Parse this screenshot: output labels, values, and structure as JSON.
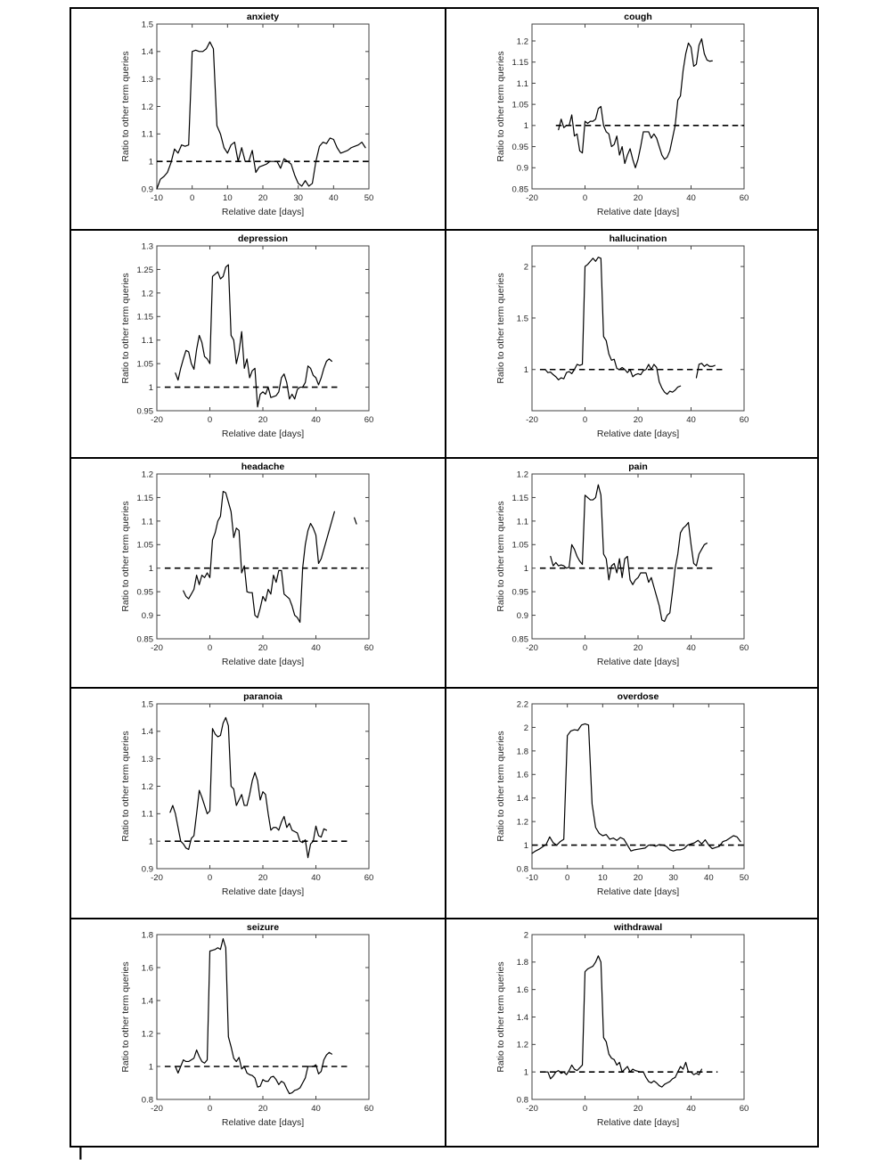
{
  "colors": {
    "background": "#ffffff",
    "line": "#000000",
    "axis": "#404040",
    "tick_text": "#262626",
    "grid_border": "#000000"
  },
  "figure": {
    "caption_mark": "|"
  },
  "chart_data": [
    {
      "type": "line",
      "title": "anxiety",
      "xlabel": "Relative date [days]",
      "ylabel": "Ratio to other term queries",
      "xlim": [
        -10,
        50
      ],
      "ylim": [
        0.9,
        1.5
      ],
      "xticks": [
        -10,
        0,
        10,
        20,
        30,
        40,
        50
      ],
      "yticks": [
        0.9,
        1,
        1.1,
        1.2,
        1.3,
        1.4,
        1.5
      ],
      "grid": false,
      "legend": null,
      "baseline": {
        "y": 1,
        "style": "dashed",
        "x_start": -10,
        "x_end": 50
      },
      "series": [
        {
          "name": "ratio",
          "x_start": -10,
          "x_step": 1,
          "y": [
            0.9,
            0.935,
            0.945,
            0.96,
            0.995,
            1.045,
            1.03,
            1.06,
            1.055,
            1.06,
            1.4,
            1.405,
            1.4,
            1.4,
            1.41,
            1.435,
            1.41,
            1.13,
            1.1,
            1.05,
            1.03,
            1.06,
            1.07,
            1.0,
            1.05,
            1.0,
            1.0,
            1.04,
            0.96,
            0.98,
            0.985,
            0.99,
            1.0,
            1.0,
            1.0,
            0.975,
            1.01,
            1.0,
            0.99,
            0.95,
            0.92,
            0.91,
            0.93,
            0.91,
            0.92,
            1.0,
            1.055,
            1.07,
            1.065,
            1.085,
            1.08,
            1.05,
            1.03,
            1.035,
            1.04,
            1.05,
            1.055,
            1.06,
            1.07,
            1.05
          ]
        }
      ]
    },
    {
      "type": "line",
      "title": "cough",
      "xlabel": "Relative date [days]",
      "ylabel": "Ratio to other term queries",
      "xlim": [
        -20,
        60
      ],
      "ylim": [
        0.85,
        1.24
      ],
      "xticks": [
        -20,
        0,
        20,
        40,
        60
      ],
      "yticks": [
        0.85,
        0.9,
        0.95,
        1,
        1.05,
        1.1,
        1.15,
        1.2
      ],
      "grid": false,
      "legend": null,
      "baseline": {
        "y": 1,
        "style": "dashed",
        "x_start": -11,
        "x_end": 60
      },
      "series": [
        {
          "name": "ratio",
          "x_start": -10,
          "x_step": 1,
          "y": [
            0.99,
            1.015,
            0.995,
            1.0,
            1.0,
            1.025,
            0.975,
            0.98,
            0.94,
            0.935,
            1.01,
            1.005,
            1.01,
            1.01,
            1.015,
            1.04,
            1.045,
            1.0,
            0.985,
            0.98,
            0.95,
            0.955,
            0.975,
            0.93,
            0.95,
            0.91,
            0.93,
            0.945,
            0.92,
            0.9,
            0.92,
            0.95,
            0.985,
            0.985,
            0.985,
            0.97,
            0.98,
            0.97,
            0.95,
            0.93,
            0.92,
            0.925,
            0.94,
            0.97,
            1.0,
            1.06,
            1.07,
            1.13,
            1.17,
            1.195,
            1.185,
            1.14,
            1.145,
            1.19,
            1.205,
            1.17,
            1.155,
            1.152,
            1.153
          ]
        }
      ]
    },
    {
      "type": "line",
      "title": "depression",
      "xlabel": "Relative date [days]",
      "ylabel": "Ratio to other term queries",
      "xlim": [
        -20,
        60
      ],
      "ylim": [
        0.95,
        1.3
      ],
      "xticks": [
        -20,
        0,
        20,
        40,
        60
      ],
      "yticks": [
        0.95,
        1,
        1.05,
        1.1,
        1.15,
        1.2,
        1.25,
        1.3
      ],
      "grid": false,
      "legend": null,
      "baseline": {
        "y": 1,
        "style": "dashed",
        "x_start": -17,
        "x_end": 49
      },
      "series": [
        {
          "name": "ratio",
          "x_start": -13,
          "x_step": 1,
          "y": [
            1.03,
            1.015,
            1.04,
            1.06,
            1.078,
            1.075,
            1.05,
            1.038,
            1.08,
            1.11,
            1.095,
            1.065,
            1.06,
            1.05,
            1.235,
            1.24,
            1.245,
            1.23,
            1.235,
            1.255,
            1.26,
            1.11,
            1.1,
            1.05,
            1.075,
            1.118,
            1.04,
            1.06,
            1.02,
            1.035,
            1.04,
            0.958,
            0.985,
            0.99,
            0.985,
            1.0,
            0.978,
            0.98,
            0.982,
            0.99,
            1.02,
            1.028,
            1.01,
            0.975,
            0.985,
            0.975,
            0.995,
            1.0,
            1.0,
            1.01,
            1.045,
            1.04,
            1.025,
            1.02,
            1.005,
            1.02,
            1.04,
            1.055,
            1.06,
            1.055
          ]
        }
      ]
    },
    {
      "type": "line",
      "title": "hallucination",
      "xlabel": "Relative date [days]",
      "ylabel": "Ratio to other term queries",
      "xlim": [
        -20,
        60
      ],
      "ylim": [
        0.6,
        2.2
      ],
      "xticks": [
        -20,
        0,
        20,
        40,
        60
      ],
      "yticks": [
        1,
        1.5,
        2
      ],
      "grid": false,
      "legend": null,
      "baseline": {
        "y": 1,
        "style": "dashed",
        "x_start": -17,
        "x_end": 52
      },
      "series": [
        {
          "name": "ratio",
          "x_start": -15,
          "x_step": 1,
          "y": [
            1.0,
            0.97,
            0.975,
            0.95,
            0.93,
            0.9,
            0.92,
            0.91,
            0.97,
            0.98,
            0.96,
            1.0,
            1.05,
            1.04,
            1.05,
            2.0,
            2.02,
            2.05,
            2.08,
            2.05,
            2.09,
            2.08,
            1.32,
            1.28,
            1.15,
            1.09,
            1.1,
            1.01,
            1.0,
            1.02,
            1.0,
            0.97,
            1.0,
            0.93,
            0.95,
            0.96,
            0.95,
            0.99,
            1.0,
            1.05,
            1.0,
            1.05,
            1.02,
            0.88,
            0.82,
            0.78,
            0.76,
            0.79,
            0.78,
            0.8,
            0.83,
            0.84
          ]
        },
        {
          "name": "ratio-after-gap",
          "x_start": 42,
          "x_step": 1,
          "y": [
            0.92,
            1.05,
            1.06,
            1.03,
            1.05,
            1.03,
            1.03,
            1.04
          ]
        }
      ]
    },
    {
      "type": "line",
      "title": "headache",
      "xlabel": "Relative date [days]",
      "ylabel": "Ratio to other term queries",
      "xlim": [
        -20,
        60
      ],
      "ylim": [
        0.85,
        1.2
      ],
      "xticks": [
        -20,
        0,
        20,
        40,
        60
      ],
      "yticks": [
        0.85,
        0.9,
        0.95,
        1,
        1.05,
        1.1,
        1.15,
        1.2
      ],
      "grid": false,
      "legend": null,
      "baseline": {
        "y": 1,
        "style": "dashed",
        "x_start": -17,
        "x_end": 58
      },
      "series": [
        {
          "name": "ratio",
          "x_start": -10,
          "x_step": 1,
          "y": [
            0.952,
            0.94,
            0.935,
            0.945,
            0.955,
            0.985,
            0.965,
            0.985,
            0.98,
            0.99,
            0.98,
            1.06,
            1.075,
            1.1,
            1.11,
            1.163,
            1.16,
            1.14,
            1.12,
            1.065,
            1.085,
            1.08,
            0.99,
            1.005,
            0.95,
            0.948,
            0.948,
            0.9,
            0.895,
            0.915,
            0.94,
            0.93,
            0.955,
            0.945,
            0.985,
            0.97,
            0.995,
            0.995,
            0.945,
            0.94,
            0.935,
            0.92,
            0.9,
            0.895,
            0.885,
            1.0,
            1.05,
            1.08,
            1.095,
            1.085,
            1.07,
            1.01,
            1.02,
            1.04,
            1.06,
            1.08,
            1.1,
            1.12
          ]
        },
        {
          "name": "stray-mark",
          "points": [
            [
              54.5,
              1.107
            ],
            [
              55.3,
              1.094
            ]
          ]
        }
      ]
    },
    {
      "type": "line",
      "title": "pain",
      "xlabel": "Relative date [days]",
      "ylabel": "Ratio to other term queries",
      "xlim": [
        -20,
        60
      ],
      "ylim": [
        0.85,
        1.2
      ],
      "xticks": [
        -20,
        0,
        20,
        40,
        60
      ],
      "yticks": [
        0.85,
        0.9,
        0.95,
        1,
        1.05,
        1.1,
        1.15,
        1.2
      ],
      "grid": false,
      "legend": null,
      "baseline": {
        "y": 1,
        "style": "dashed",
        "x_start": -17,
        "x_end": 48
      },
      "series": [
        {
          "name": "ratio",
          "x_start": -13,
          "x_step": 1,
          "y": [
            1.025,
            1.005,
            1.012,
            1.005,
            1.007,
            1.005,
            1.0,
            1.002,
            1.05,
            1.04,
            1.025,
            1.015,
            1.008,
            1.155,
            1.15,
            1.145,
            1.145,
            1.15,
            1.177,
            1.155,
            1.03,
            1.02,
            0.975,
            1.005,
            1.01,
            0.99,
            1.02,
            0.98,
            1.02,
            1.025,
            0.975,
            0.965,
            0.975,
            0.98,
            0.99,
            0.99,
            0.99,
            0.97,
            0.98,
            0.96,
            0.94,
            0.92,
            0.89,
            0.887,
            0.9,
            0.905,
            0.95,
            1.0,
            1.03,
            1.075,
            1.085,
            1.09,
            1.097,
            1.05,
            1.01,
            1.005,
            1.03,
            1.04,
            1.05,
            1.053
          ]
        }
      ]
    },
    {
      "type": "line",
      "title": "paranoia",
      "xlabel": "Relative date [days]",
      "ylabel": "Ratio to other term queries",
      "xlim": [
        -20,
        60
      ],
      "ylim": [
        0.9,
        1.5
      ],
      "xticks": [
        -20,
        0,
        20,
        40,
        60
      ],
      "yticks": [
        0.9,
        1,
        1.1,
        1.2,
        1.3,
        1.4,
        1.5
      ],
      "grid": false,
      "legend": null,
      "baseline": {
        "y": 1,
        "style": "dashed",
        "x_start": -17,
        "x_end": 52
      },
      "series": [
        {
          "name": "ratio",
          "x_start": -15,
          "x_step": 1,
          "y": [
            1.105,
            1.13,
            1.1,
            1.05,
            1.0,
            0.99,
            0.975,
            0.97,
            1.01,
            1.02,
            1.1,
            1.185,
            1.16,
            1.13,
            1.1,
            1.11,
            1.41,
            1.39,
            1.38,
            1.385,
            1.43,
            1.45,
            1.42,
            1.2,
            1.19,
            1.13,
            1.15,
            1.17,
            1.13,
            1.13,
            1.17,
            1.22,
            1.25,
            1.22,
            1.15,
            1.18,
            1.17,
            1.1,
            1.04,
            1.05,
            1.05,
            1.04,
            1.07,
            1.09,
            1.05,
            1.065,
            1.04,
            1.035,
            1.03,
            1.0,
            0.995,
            1.005,
            0.94,
            0.99,
            1.0,
            1.055,
            1.02,
            1.015,
            1.045,
            1.04
          ]
        }
      ]
    },
    {
      "type": "line",
      "title": "overdose",
      "xlabel": "Relative date [days]",
      "ylabel": "Ratio to other term queries",
      "xlim": [
        -10,
        50
      ],
      "ylim": [
        0.8,
        2.2
      ],
      "xticks": [
        -10,
        0,
        10,
        20,
        30,
        40,
        50
      ],
      "yticks": [
        0.8,
        1,
        1.2,
        1.4,
        1.6,
        1.8,
        2,
        2.2
      ],
      "grid": false,
      "legend": null,
      "baseline": {
        "y": 1,
        "style": "dashed",
        "x_start": -10,
        "x_end": 50
      },
      "series": [
        {
          "name": "ratio",
          "x_start": -10,
          "x_step": 1,
          "y": [
            0.93,
            0.95,
            0.965,
            0.985,
            1.005,
            1.07,
            1.02,
            1.0,
            1.03,
            1.05,
            1.93,
            1.97,
            1.98,
            1.975,
            2.02,
            2.03,
            2.02,
            1.35,
            1.15,
            1.1,
            1.08,
            1.09,
            1.05,
            1.06,
            1.04,
            1.065,
            1.05,
            1.0,
            0.95,
            0.96,
            0.965,
            0.97,
            0.975,
            1.0,
            1.0,
            0.99,
            1.005,
            1.0,
            0.99,
            0.96,
            0.95,
            0.96,
            0.96,
            0.97,
            1.0,
            1.01,
            1.02,
            1.04,
            1.01,
            1.045,
            1.0,
            0.97,
            0.98,
            0.99,
            1.03,
            1.04,
            1.06,
            1.08,
            1.07,
            1.03
          ]
        }
      ]
    },
    {
      "type": "line",
      "title": "seizure",
      "xlabel": "Relative date [days]",
      "ylabel": "Ratio to other term queries",
      "xlim": [
        -20,
        60
      ],
      "ylim": [
        0.8,
        1.8
      ],
      "xticks": [
        -20,
        0,
        20,
        40,
        60
      ],
      "yticks": [
        0.8,
        1,
        1.2,
        1.4,
        1.6,
        1.8
      ],
      "grid": false,
      "legend": null,
      "baseline": {
        "y": 1,
        "style": "dashed",
        "x_start": -17,
        "x_end": 52
      },
      "series": [
        {
          "name": "ratio",
          "x_start": -13,
          "x_step": 1,
          "y": [
            1.0,
            0.96,
            1.0,
            1.04,
            1.03,
            1.03,
            1.04,
            1.05,
            1.1,
            1.06,
            1.03,
            1.02,
            1.04,
            1.7,
            1.705,
            1.71,
            1.72,
            1.71,
            1.775,
            1.72,
            1.18,
            1.12,
            1.05,
            1.03,
            1.055,
            0.985,
            1.0,
            0.96,
            0.95,
            0.945,
            0.93,
            0.875,
            0.88,
            0.92,
            0.91,
            0.91,
            0.935,
            0.94,
            0.92,
            0.89,
            0.91,
            0.9,
            0.865,
            0.835,
            0.84,
            0.855,
            0.86,
            0.87,
            0.9,
            0.93,
            1.0,
            1.0,
            1.0,
            1.01,
            0.955,
            0.97,
            1.04,
            1.07,
            1.085,
            1.075
          ]
        }
      ]
    },
    {
      "type": "line",
      "title": "withdrawal",
      "xlabel": "Relative date [days]",
      "ylabel": "Ratio to other term queries",
      "xlim": [
        -20,
        60
      ],
      "ylim": [
        0.8,
        2
      ],
      "xticks": [
        -20,
        0,
        20,
        40,
        60
      ],
      "yticks": [
        0.8,
        1,
        1.2,
        1.4,
        1.6,
        1.8,
        2
      ],
      "grid": false,
      "legend": null,
      "baseline": {
        "y": 1,
        "style": "dashed",
        "x_start": -17,
        "x_end": 50
      },
      "series": [
        {
          "name": "ratio",
          "x_start": -15,
          "x_step": 1,
          "y": [
            1.0,
            1.0,
            0.95,
            0.97,
            1.0,
            1.01,
            0.99,
            1.0,
            0.98,
            1.01,
            1.05,
            1.02,
            1.01,
            1.03,
            1.05,
            1.73,
            1.75,
            1.76,
            1.77,
            1.8,
            1.845,
            1.8,
            1.25,
            1.22,
            1.13,
            1.1,
            1.09,
            1.05,
            1.07,
            1.0,
            1.02,
            1.04,
            1.0,
            1.02,
            1.01,
            1.005,
            1.0,
            1.0,
            0.96,
            0.93,
            0.92,
            0.935,
            0.92,
            0.9,
            0.89,
            0.91,
            0.92,
            0.93,
            0.95,
            0.96,
            1.0,
            1.04,
            1.02,
            1.07,
            1.0,
            1.0,
            0.98,
            0.99,
            0.98,
            1.02
          ]
        }
      ]
    }
  ]
}
